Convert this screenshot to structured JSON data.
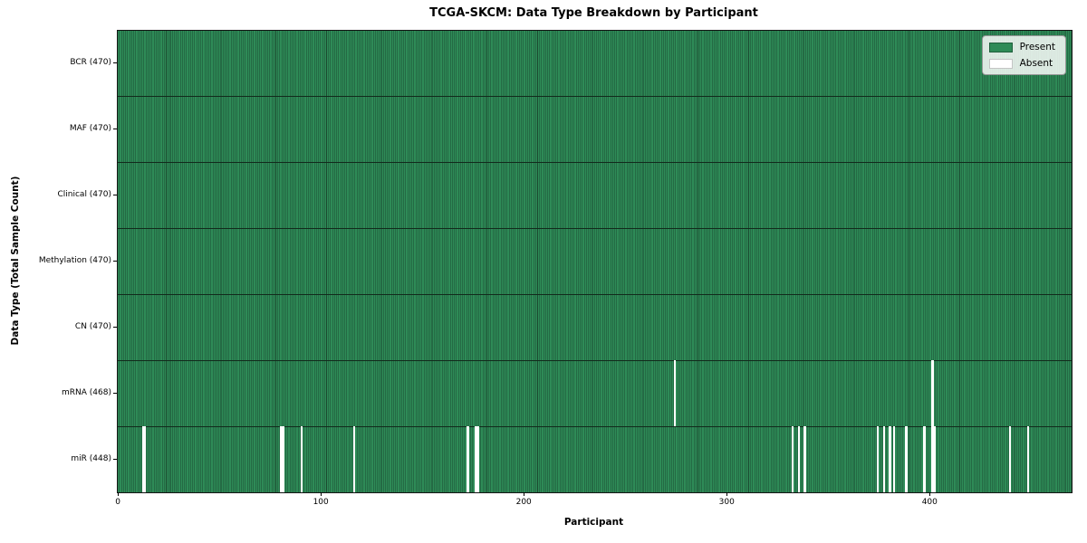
{
  "chart_data": {
    "type": "heatmap",
    "title": "TCGA-SKCM: Data Type Breakdown by Participant",
    "xlabel": "Participant",
    "ylabel": "Data Type (Total Sample Count)",
    "n_participants": 470,
    "x_ticks": [
      0,
      100,
      200,
      300,
      400
    ],
    "grid": false,
    "legend_position": "upper right",
    "legend": [
      {
        "label": "Present",
        "color": "#2e8b57"
      },
      {
        "label": "Absent",
        "color": "#ffffff"
      }
    ],
    "colors": {
      "present": "#2e8b57",
      "present_edge": "#1b4a30",
      "absent": "#ffffff",
      "row_separator": "#122a1c",
      "axes_border": "#141414"
    },
    "rows": [
      {
        "label": "BCR (470)",
        "data_type": "BCR",
        "total": 470,
        "absent_participants": []
      },
      {
        "label": "MAF (470)",
        "data_type": "MAF",
        "total": 470,
        "absent_participants": []
      },
      {
        "label": "Clinical (470)",
        "data_type": "Clinical",
        "total": 470,
        "absent_participants": []
      },
      {
        "label": "Methylation (470)",
        "data_type": "Methylation",
        "total": 470,
        "absent_participants": []
      },
      {
        "label": "CN (470)",
        "data_type": "CN",
        "total": 470,
        "absent_participants": []
      },
      {
        "label": "mRNA (468)",
        "data_type": "mRNA",
        "total": 468,
        "absent_participants": [
          274,
          401
        ]
      },
      {
        "label": "miR (448)",
        "data_type": "miR",
        "total": 448,
        "absent_participants": [
          12,
          13,
          80,
          81,
          90,
          116,
          172,
          176,
          177,
          332,
          335,
          338,
          374,
          377,
          380,
          382,
          388,
          397,
          401,
          402,
          439,
          448
        ]
      }
    ]
  }
}
